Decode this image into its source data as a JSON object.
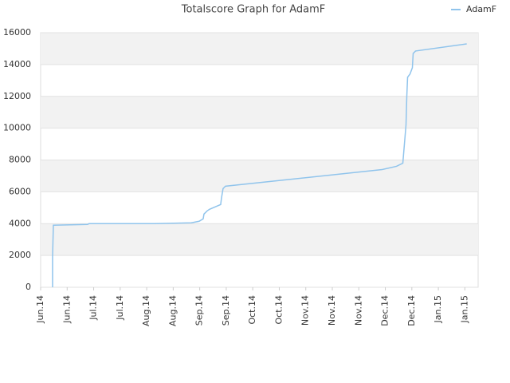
{
  "chart_data": {
    "type": "line",
    "title": "Totalscore Graph for AdamF",
    "series": [
      {
        "name": "AdamF",
        "color": "#90c4ec",
        "x": [
          0.45,
          0.45,
          0.48,
          1.77,
          1.83,
          4.32,
          5.68,
          5.98,
          6.13,
          6.16,
          6.28,
          6.37,
          6.79,
          6.82,
          6.88,
          6.97,
          12.88,
          13.42,
          13.66,
          13.72,
          13.78,
          13.81,
          13.84,
          13.93,
          14.02,
          14.05,
          14.14,
          16.07
        ],
        "values": [
          0,
          1900,
          3900,
          3950,
          4000,
          4000,
          4050,
          4150,
          4300,
          4600,
          4800,
          4900,
          5200,
          5600,
          6200,
          6350,
          7400,
          7600,
          7800,
          9000,
          10200,
          12000,
          13200,
          13400,
          13800,
          14700,
          14850,
          15300
        ]
      }
    ],
    "xlim": [
      0,
      16.5
    ],
    "xticks": [
      {
        "value": 0,
        "label": "Jun.14"
      },
      {
        "value": 1,
        "label": "Jun.14"
      },
      {
        "value": 2,
        "label": "Jul.14"
      },
      {
        "value": 3,
        "label": "Jul.14"
      },
      {
        "value": 4,
        "label": "Aug.14"
      },
      {
        "value": 5,
        "label": "Aug.14"
      },
      {
        "value": 6,
        "label": "Sep.14"
      },
      {
        "value": 7,
        "label": "Sep.14"
      },
      {
        "value": 8,
        "label": "Oct.14"
      },
      {
        "value": 9,
        "label": "Oct.14"
      },
      {
        "value": 10,
        "label": "Nov.14"
      },
      {
        "value": 11,
        "label": "Nov.14"
      },
      {
        "value": 12,
        "label": "Nov.14"
      },
      {
        "value": 13,
        "label": "Dec.14"
      },
      {
        "value": 14,
        "label": "Dec.14"
      },
      {
        "value": 15,
        "label": "Jan.15"
      },
      {
        "value": 16,
        "label": "Jan.15"
      }
    ],
    "ylim": [
      0,
      16000
    ],
    "yticks": [
      0,
      2000,
      4000,
      6000,
      8000,
      10000,
      12000,
      14000,
      16000
    ],
    "grid": true,
    "legend": "top-right"
  }
}
